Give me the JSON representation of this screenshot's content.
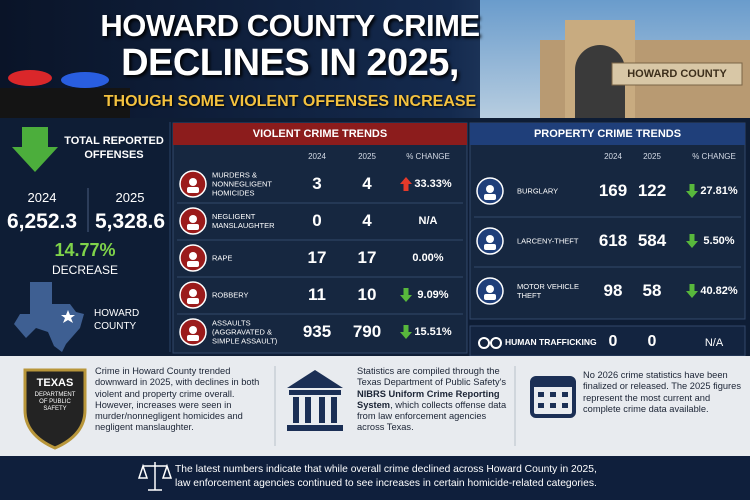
{
  "header": {
    "title_line1": "HOWARD COUNTY CRIME",
    "title_line2": "DECLINES IN 2025,",
    "subtitle": "THOUGH SOME VIOLENT OFFENSES INCREASE",
    "building_sign": "HOWARD COUNTY"
  },
  "summary": {
    "title": "TOTAL REPORTED OFFENSES",
    "years": [
      "2024",
      "2025"
    ],
    "totals": [
      "6,252.3",
      "5,328.6"
    ],
    "change": "14.77%",
    "change_label": "DECREASE",
    "county": "HOWARD COUNTY"
  },
  "violent": {
    "title": "VIOLENT CRIME TRENDS",
    "columns": [
      "2024",
      "2025",
      "% CHANGE"
    ],
    "rows": [
      {
        "label": "MURDERS & NONNEGLIGENT HOMICIDES",
        "values": [
          3,
          4
        ],
        "change": "33.33%",
        "trend": "up"
      },
      {
        "label": "NEGLIGENT MANSLAUGHTER",
        "values": [
          0,
          4
        ],
        "change": "N/A"
      },
      {
        "label": "RAPE",
        "values": [
          17,
          17
        ],
        "change": "0.00%"
      },
      {
        "label": "ROBBERY",
        "values": [
          11,
          10
        ],
        "change": "9.09%",
        "trend": "down"
      },
      {
        "label": "ASSAULTS (AGGRAVATED & SIMPLE ASSAULT)",
        "values": [
          935,
          790
        ],
        "change": "15.51%",
        "trend": "down"
      }
    ]
  },
  "property": {
    "title": "PROPERTY CRIME TRENDS",
    "columns": [
      "2024",
      "2025",
      "% CHANGE"
    ],
    "rows": [
      {
        "label": "BURGLARY",
        "values": [
          169,
          122
        ],
        "change": "27.81%",
        "trend": "down"
      },
      {
        "label": "LARCENY-THEFT",
        "values": [
          618,
          584
        ],
        "change": "5.50%",
        "trend": "down"
      },
      {
        "label": "MOTOR VEHICLE THEFT",
        "values": [
          98,
          58
        ],
        "change": "40.82%",
        "trend": "down"
      }
    ],
    "extra": {
      "label": "HUMAN TRAFFICKING",
      "values": [
        0,
        0
      ],
      "change": "N/A"
    }
  },
  "notes": [
    {
      "badge": [
        "TEXAS",
        "DEPARTMENT OF PUBLIC SAFETY"
      ],
      "text": "Crime in Howard County trended downward in 2025, with declines in both violent and property crime overall. However, increases were seen in murder/nonnegligent homicides and negligent manslaughter."
    },
    {
      "text": [
        "Statistics are compiled through the Texas Department of Public Safety's ",
        "NIBRS Uniform Crime Reporting System",
        ", which collects offense data from law enforcement agencies across Texas."
      ]
    },
    {
      "text": "No 2026 crime statistics have been finalized or released. The 2025 figures represent the most current and complete crime data available."
    }
  ],
  "footer": "The latest numbers indicate that while overall crime declined across Howard County in 2025, law enforcement agencies continued to see increases in certain homicide-related categories."
}
